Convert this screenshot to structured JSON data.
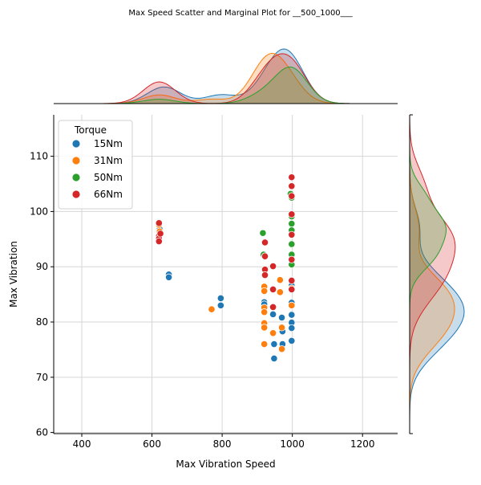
{
  "title": "Max Speed Scatter and Marginal Plot for __500_1000___",
  "chart_data": {
    "type": "scatter",
    "title": "Max Speed Scatter and Marginal Plot for __500_1000___",
    "xlabel": "Max Vibration Speed",
    "ylabel": "Max Vibration",
    "xlim": [
      320,
      1300
    ],
    "ylim": [
      59.8,
      117.5
    ],
    "x_ticks": [
      400,
      600,
      800,
      1000,
      1200
    ],
    "y_ticks": [
      60,
      70,
      80,
      90,
      100,
      110
    ],
    "grid": true,
    "legend": {
      "title": "Torque",
      "position": "top-left"
    },
    "marginals": {
      "top": "kde",
      "right": "kde"
    },
    "series": [
      {
        "name": "15Nm",
        "color": "#1f77b4",
        "points": [
          [
            620,
            97.5
          ],
          [
            622,
            96.8
          ],
          [
            648,
            88.6
          ],
          [
            648,
            88.1
          ],
          [
            796,
            84.3
          ],
          [
            796,
            83.0
          ],
          [
            920,
            83.6
          ],
          [
            920,
            83.2
          ],
          [
            945,
            81.4
          ],
          [
            948,
            76.0
          ],
          [
            948,
            73.4
          ],
          [
            970,
            80.8
          ],
          [
            972,
            78.3
          ],
          [
            972,
            76.0
          ],
          [
            998,
            87.6
          ],
          [
            998,
            86.6
          ],
          [
            998,
            83.5
          ],
          [
            998,
            81.3
          ],
          [
            998,
            79.9
          ],
          [
            998,
            78.9
          ],
          [
            998,
            76.6
          ]
        ]
      },
      {
        "name": "31Nm",
        "color": "#ff7f0e",
        "points": [
          [
            620,
            97.6
          ],
          [
            622,
            96.4
          ],
          [
            770,
            82.3
          ],
          [
            920,
            86.4
          ],
          [
            920,
            85.6
          ],
          [
            920,
            82.6
          ],
          [
            920,
            81.8
          ],
          [
            920,
            79.8
          ],
          [
            920,
            79.0
          ],
          [
            920,
            76.0
          ],
          [
            945,
            78.0
          ],
          [
            965,
            87.6
          ],
          [
            965,
            85.4
          ],
          [
            970,
            79.0
          ],
          [
            970,
            75.1
          ],
          [
            998,
            83.0
          ],
          [
            998,
            86.1
          ]
        ]
      },
      {
        "name": "50Nm",
        "color": "#2ca02c",
        "points": [
          [
            620,
            98.0
          ],
          [
            916,
            96.1
          ],
          [
            918,
            92.2
          ],
          [
            995,
            103.2
          ],
          [
            998,
            102.5
          ],
          [
            998,
            99.1
          ],
          [
            998,
            97.8
          ],
          [
            998,
            96.6
          ],
          [
            998,
            94.1
          ],
          [
            998,
            92.2
          ],
          [
            998,
            90.4
          ]
        ]
      },
      {
        "name": "66Nm",
        "color": "#d62728",
        "points": [
          [
            620,
            97.9
          ],
          [
            620,
            95.6
          ],
          [
            620,
            95.1
          ],
          [
            620,
            94.6
          ],
          [
            624,
            96.0
          ],
          [
            922,
            94.4
          ],
          [
            922,
            91.9
          ],
          [
            922,
            89.5
          ],
          [
            922,
            88.5
          ],
          [
            945,
            90.1
          ],
          [
            945,
            85.9
          ],
          [
            945,
            82.7
          ],
          [
            998,
            106.2
          ],
          [
            998,
            104.6
          ],
          [
            998,
            102.8
          ],
          [
            998,
            99.5
          ],
          [
            998,
            95.8
          ],
          [
            998,
            91.3
          ],
          [
            998,
            87.5
          ],
          [
            998,
            85.9
          ]
        ]
      }
    ]
  }
}
